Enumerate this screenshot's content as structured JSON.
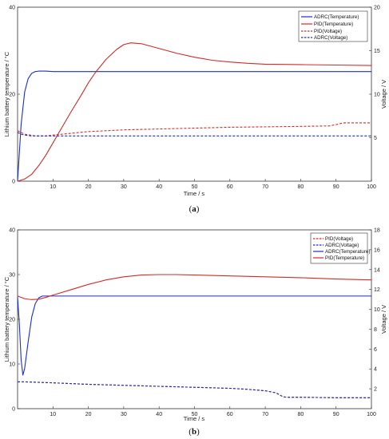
{
  "chart_data": [
    {
      "panel_label": "a",
      "type": "line",
      "xlabel": "Time / s",
      "ylabel": "Lithium battery temperature / °C",
      "y2label": "Voltage / V",
      "xlim": [
        0,
        100
      ],
      "ylim": [
        0,
        40
      ],
      "y2lim": [
        0,
        20
      ],
      "xticks": [
        "10",
        "20",
        "30",
        "40",
        "50",
        "60",
        "70",
        "80",
        "90",
        "100"
      ],
      "yticks": [
        "0",
        "20",
        "40"
      ],
      "y2ticks": [
        "5",
        "10",
        "15",
        "20"
      ],
      "legend_position": "top-right",
      "legend": [
        "ADRC(Temperature)",
        "PID(Temperature)",
        "PID(Voltage)",
        "ADRC(Voltage)"
      ],
      "series": [
        {
          "name": "ADRC(Temperature)",
          "axis": "left",
          "color": "#1f2fbf",
          "dash": "solid",
          "x": [
            0,
            1,
            2,
            3,
            4,
            5,
            6,
            8,
            10,
            20,
            30,
            40,
            50,
            60,
            70,
            80,
            90,
            100
          ],
          "y": [
            0,
            13,
            20.5,
            23.6,
            24.8,
            25.2,
            25.3,
            25.3,
            25.2,
            25.2,
            25.2,
            25.2,
            25.2,
            25.2,
            25.2,
            25.2,
            25.2,
            25.2
          ]
        },
        {
          "name": "PID(Temperature)",
          "axis": "left",
          "color": "#d42a2a",
          "dash": "solid",
          "x": [
            0,
            2,
            4,
            6,
            8,
            10,
            12,
            15,
            18,
            20,
            22,
            25,
            28,
            30,
            32,
            35,
            40,
            45,
            50,
            55,
            60,
            65,
            70,
            80,
            90,
            100
          ],
          "y": [
            0,
            0.5,
            1.6,
            3.6,
            6.0,
            8.8,
            11.6,
            15.8,
            19.8,
            22.6,
            25.0,
            28.0,
            30.3,
            31.4,
            31.8,
            31.6,
            30.5,
            29.4,
            28.5,
            27.8,
            27.4,
            27.1,
            26.9,
            26.8,
            26.7,
            26.6
          ]
        },
        {
          "name": "PID(Voltage)",
          "axis": "right",
          "color": "#d42a2a",
          "dash": "dashed",
          "x": [
            0,
            2,
            5,
            8,
            10,
            15,
            20,
            30,
            40,
            50,
            60,
            70,
            80,
            88,
            90,
            92,
            100
          ],
          "y": [
            5.8,
            5.4,
            5.2,
            5.2,
            5.3,
            5.5,
            5.7,
            5.9,
            6.0,
            6.1,
            6.2,
            6.25,
            6.3,
            6.35,
            6.5,
            6.7,
            6.7
          ]
        },
        {
          "name": "ADRC(Voltage)",
          "axis": "right",
          "color": "#1f2fbf",
          "dash": "dashed",
          "x": [
            0,
            1,
            2,
            4,
            6,
            10,
            20,
            40,
            60,
            80,
            100
          ],
          "y": [
            5.6,
            5.4,
            5.3,
            5.2,
            5.2,
            5.2,
            5.2,
            5.2,
            5.2,
            5.2,
            5.2
          ]
        }
      ]
    },
    {
      "panel_label": "b",
      "type": "line",
      "xlabel": "Time / s",
      "ylabel": "Lithium battery temperature / °C",
      "y2label": "Voltage / V",
      "xlim": [
        0,
        100
      ],
      "ylim": [
        0,
        40
      ],
      "y2lim": [
        0,
        18
      ],
      "xticks": [
        "10",
        "20",
        "30",
        "40",
        "50",
        "60",
        "70",
        "80",
        "90",
        "100"
      ],
      "yticks": [
        "0",
        "10",
        "20",
        "30",
        "40"
      ],
      "y2ticks": [
        "2",
        "4",
        "6",
        "8",
        "10",
        "12",
        "14",
        "16",
        "18"
      ],
      "legend_position": "top-right",
      "legend": [
        "PID(Voltage)",
        "ADRC(Voltage)",
        "ADRC(Temperature)",
        "PID(Temperature)"
      ],
      "series": [
        {
          "name": "PID(Voltage)",
          "axis": "right",
          "color": "#d42a2a",
          "dash": "dashed",
          "x": [
            0,
            2,
            10,
            20,
            30,
            40,
            50,
            60,
            65,
            70,
            73,
            75,
            76,
            80,
            90,
            100
          ],
          "y": [
            2.7,
            2.7,
            2.6,
            2.45,
            2.35,
            2.25,
            2.15,
            2.05,
            1.95,
            1.8,
            1.6,
            1.2,
            1.15,
            1.15,
            1.1,
            1.1
          ]
        },
        {
          "name": "ADRC(Voltage)",
          "axis": "right",
          "color": "#1f2fbf",
          "dash": "dashed",
          "x": [
            0,
            2,
            10,
            20,
            30,
            40,
            50,
            60,
            65,
            70,
            73,
            75,
            76,
            80,
            90,
            100
          ],
          "y": [
            2.7,
            2.7,
            2.6,
            2.45,
            2.35,
            2.25,
            2.15,
            2.05,
            1.95,
            1.8,
            1.6,
            1.2,
            1.15,
            1.15,
            1.1,
            1.1
          ]
        },
        {
          "name": "ADRC(Temperature)",
          "axis": "left",
          "color": "#1f2fbf",
          "dash": "solid",
          "x": [
            0,
            0.5,
            1,
            1.5,
            2,
            3,
            4,
            5,
            6,
            7,
            8,
            10,
            20,
            40,
            60,
            80,
            100
          ],
          "y": [
            25,
            19,
            11,
            7.5,
            9,
            15,
            20.5,
            23.5,
            24.8,
            25.2,
            25.2,
            25.2,
            25.2,
            25.2,
            25.2,
            25.2,
            25.2
          ]
        },
        {
          "name": "PID(Temperature)",
          "axis": "left",
          "color": "#d42a2a",
          "dash": "solid",
          "x": [
            0,
            2,
            4,
            6,
            8,
            10,
            15,
            20,
            25,
            30,
            35,
            40,
            45,
            50,
            60,
            70,
            80,
            90,
            100
          ],
          "y": [
            25.2,
            24.6,
            24.4,
            24.5,
            24.9,
            25.4,
            26.6,
            27.8,
            28.8,
            29.5,
            29.9,
            30.0,
            30.0,
            29.9,
            29.7,
            29.5,
            29.3,
            29.0,
            28.8
          ]
        }
      ]
    }
  ]
}
